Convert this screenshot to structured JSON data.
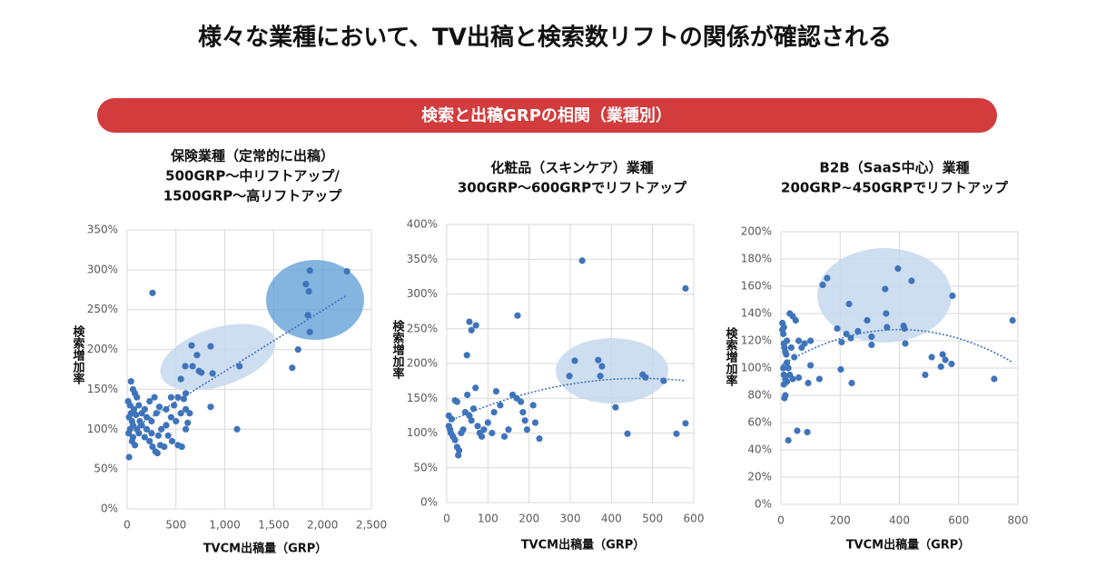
{
  "header": {
    "title": "様々な業種において、TV出稿と検索数リフトの関係が確認される",
    "banner": "検索と出稿GRPの相関（業種別）"
  },
  "chart_data": [
    {
      "type": "scatter",
      "title": [
        "保険業種（定常的に出稿）",
        "500GRP～中リフトアップ/",
        "1500GRP～高リフトアップ"
      ],
      "x_label": "TVCM出稿量（GRP）",
      "y_label": "検索増加率",
      "color": "#3f74bb",
      "grid": true,
      "trendline": "linear",
      "xlim": [
        0,
        2500
      ],
      "xticks": [
        0,
        500,
        {
          "value": 1000,
          "label": "1,000"
        },
        {
          "value": 1500,
          "label": "1,500"
        },
        {
          "value": 2000,
          "label": "2,000"
        },
        {
          "value": 2500,
          "label": "2,500"
        }
      ],
      "ylim": [
        0,
        350
      ],
      "yticks": [
        {
          "value": 0,
          "label": "0%"
        },
        {
          "value": 50,
          "label": "50%"
        },
        {
          "value": 100,
          "label": "100%"
        },
        {
          "value": 150,
          "label": "150%"
        },
        {
          "value": 200,
          "label": "200%"
        },
        {
          "value": 250,
          "label": "250%"
        },
        {
          "value": 300,
          "label": "300%"
        },
        {
          "value": 350,
          "label": "350%"
        }
      ],
      "x": [
        260,
        1870,
        2250,
        1830,
        1860,
        1850,
        1870,
        1750,
        1690,
        660,
        855,
        715,
        1150,
        595,
        670,
        735,
        760,
        875,
        550,
        855,
        1125,
        20,
        10,
        30,
        50,
        40,
        60,
        80,
        100,
        120,
        70,
        90,
        150,
        200,
        250,
        300,
        350,
        400,
        450,
        500,
        550,
        600,
        20,
        15,
        30,
        60,
        80,
        120,
        150,
        180,
        200,
        230,
        260,
        290,
        310,
        340,
        380,
        420,
        460,
        520,
        560,
        600,
        580,
        520,
        450,
        400,
        330,
        280,
        230,
        180,
        130,
        100,
        60,
        40,
        250,
        320,
        480,
        620,
        640,
        600,
        50
      ],
      "values": [
        271,
        299,
        298,
        282,
        273,
        243,
        222,
        200,
        177,
        205,
        204,
        193,
        179,
        179,
        179,
        173,
        171,
        170,
        163,
        128,
        100,
        65,
        135,
        130,
        110,
        160,
        150,
        145,
        140,
        130,
        125,
        118,
        120,
        115,
        110,
        120,
        100,
        105,
        115,
        110,
        120,
        125,
        115,
        95,
        100,
        90,
        80,
        95,
        105,
        90,
        100,
        85,
        78,
        72,
        70,
        80,
        78,
        92,
        85,
        80,
        78,
        145,
        138,
        140,
        140,
        125,
        128,
        140,
        135,
        125,
        110,
        100,
        105,
        120,
        95,
        92,
        130,
        108,
        120,
        100,
        85
      ]
    },
    {
      "type": "scatter",
      "title": [
        "化粧品（スキンケア）業種",
        "300GRP～600GRPでリフトアップ"
      ],
      "x_label": "TVCM出稿量（GRP）",
      "y_label": "検索増加率",
      "color": "#3f74bb",
      "grid": true,
      "trendline": "polynomial",
      "xlim": [
        0,
        600
      ],
      "xticks": [
        0,
        100,
        200,
        300,
        400,
        500,
        600
      ],
      "ylim": [
        0,
        400
      ],
      "yticks": [
        {
          "value": 0,
          "label": "0%"
        },
        {
          "value": 50,
          "label": "50%"
        },
        {
          "value": 100,
          "label": "100%"
        },
        {
          "value": 150,
          "label": "150%"
        },
        {
          "value": 200,
          "label": "200%"
        },
        {
          "value": 250,
          "label": "250%"
        },
        {
          "value": 300,
          "label": "300%"
        },
        {
          "value": 350,
          "label": "350%"
        },
        {
          "value": 400,
          "label": "400%"
        }
      ],
      "x": [
        329,
        580,
        172,
        55,
        71,
        60,
        49,
        311,
        368,
        377,
        476,
        483,
        298,
        373,
        527,
        410,
        439,
        580,
        558,
        10,
        5,
        15,
        20,
        25,
        30,
        28,
        12,
        20,
        25,
        40,
        50,
        55,
        60,
        65,
        70,
        75,
        80,
        90,
        100,
        110,
        120,
        130,
        140,
        160,
        170,
        180,
        185,
        190,
        195,
        210,
        215,
        225,
        5,
        8,
        35,
        45,
        85,
        150,
        115
      ],
      "values": [
        348,
        308,
        269,
        260,
        255,
        248,
        212,
        204,
        205,
        196,
        184,
        180,
        182,
        182,
        175,
        137,
        99,
        114,
        99,
        100,
        110,
        95,
        90,
        80,
        75,
        68,
        120,
        147,
        145,
        105,
        155,
        125,
        118,
        135,
        165,
        110,
        100,
        105,
        115,
        100,
        160,
        140,
        95,
        155,
        150,
        145,
        130,
        118,
        105,
        140,
        115,
        92,
        125,
        105,
        100,
        130,
        95,
        105,
        130
      ]
    },
    {
      "type": "scatter",
      "title": [
        "B2B（SaaS中心）業種",
        "200GRP~450GRPでリフトアップ"
      ],
      "x_label": "TVCM出稿量（GRP）",
      "y_label": "検索増加率",
      "color": "#3f74bb",
      "grid": true,
      "trendline": "polynomial",
      "xlim": [
        0,
        800
      ],
      "xticks": [
        0,
        200,
        400,
        600,
        800
      ],
      "ylim": [
        0,
        200
      ],
      "yticks": [
        {
          "value": 0,
          "label": "0%"
        },
        {
          "value": 20,
          "label": "20%"
        },
        {
          "value": 40,
          "label": "40%"
        },
        {
          "value": 60,
          "label": "60%"
        },
        {
          "value": 80,
          "label": "80%"
        },
        {
          "value": 100,
          "label": "100%"
        },
        {
          "value": 120,
          "label": "120%"
        },
        {
          "value": 140,
          "label": "140%"
        },
        {
          "value": 160,
          "label": "160%"
        },
        {
          "value": 180,
          "label": "180%"
        },
        {
          "value": 200,
          "label": "200%"
        }
      ],
      "x": [
        395,
        156,
        441,
        141,
        352,
        579,
        230,
        355,
        291,
        782,
        414,
        358,
        417,
        190,
        260,
        221,
        306,
        236,
        205,
        306,
        420,
        509,
        546,
        555,
        576,
        540,
        202,
        487,
        720,
        239,
        92,
        55,
        89,
        25,
        5,
        5,
        8,
        10,
        12,
        15,
        18,
        20,
        25,
        8,
        10,
        15,
        20,
        10,
        12,
        15,
        30,
        40,
        50,
        60,
        70,
        80,
        100,
        30,
        40,
        60,
        100,
        130,
        10,
        20,
        35,
        45
      ],
      "values": [
        173,
        166,
        164,
        161,
        158,
        153,
        147,
        140,
        135,
        135,
        131,
        130,
        129,
        129,
        127,
        125,
        123,
        122,
        119,
        117,
        118,
        108,
        110,
        106,
        103,
        101,
        99,
        95,
        92,
        89,
        89,
        54,
        53,
        47,
        133,
        128,
        125,
        118,
        115,
        112,
        110,
        104,
        100,
        100,
        95,
        92,
        90,
        88,
        78,
        80,
        140,
        138,
        135,
        120,
        115,
        118,
        120,
        95,
        92,
        93,
        102,
        92,
        130,
        120,
        115,
        108
      ]
    }
  ]
}
